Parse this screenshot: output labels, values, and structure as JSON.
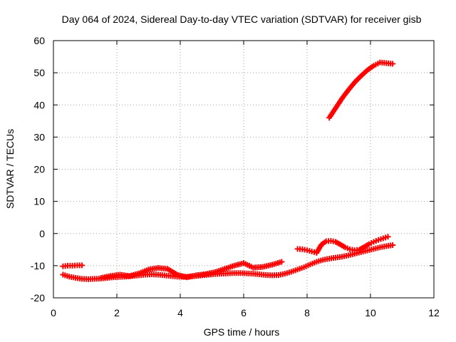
{
  "chart_data": {
    "type": "scatter",
    "title": "Day 064 of 2024, Sidereal Day-to-day VTEC variation (SDTVAR) for receiver gisb",
    "xlabel": "GPS time / hours",
    "ylabel": "SDTVAR / TECUs",
    "xlim": [
      0,
      12
    ],
    "ylim": [
      -20,
      60
    ],
    "xticks": [
      0,
      2,
      4,
      6,
      8,
      10,
      12
    ],
    "yticks": [
      -20,
      -10,
      0,
      10,
      20,
      30,
      40,
      50,
      60
    ],
    "grid": true,
    "marker": "plus",
    "color": "#ff0000",
    "series": [
      {
        "name": "arc-1",
        "x": [
          0.3,
          0.45,
          0.6,
          0.75,
          0.9
        ],
        "y": [
          -10.2,
          -10.0,
          -10.0,
          -9.9,
          -9.9
        ]
      },
      {
        "name": "arc-2",
        "x": [
          0.3,
          0.5,
          0.7,
          0.9,
          1.1,
          1.3,
          1.5,
          1.7,
          1.9,
          2.1,
          2.3,
          2.5,
          2.7,
          2.9,
          3.1,
          3.3,
          3.5,
          3.7,
          3.9,
          4.1,
          4.3,
          4.5,
          4.7,
          4.9,
          5.1,
          5.3,
          5.5,
          5.7,
          5.9,
          6.1,
          6.3,
          6.5,
          6.7,
          6.9,
          7.1,
          7.3,
          7.5,
          7.7,
          7.9,
          8.1,
          8.3,
          8.5,
          8.7,
          8.9,
          9.1,
          9.3,
          9.5,
          9.7,
          9.9,
          10.1,
          10.3,
          10.5,
          10.7
        ],
        "y": [
          -12.8,
          -13.4,
          -13.8,
          -14.1,
          -14.2,
          -14.1,
          -14.0,
          -13.8,
          -13.6,
          -13.5,
          -13.4,
          -13.2,
          -13.0,
          -12.8,
          -12.7,
          -12.8,
          -13.0,
          -13.2,
          -13.4,
          -13.5,
          -13.4,
          -13.2,
          -13.0,
          -12.8,
          -12.6,
          -12.5,
          -12.4,
          -12.3,
          -12.3,
          -12.4,
          -12.5,
          -12.7,
          -12.9,
          -13.0,
          -12.9,
          -12.5,
          -11.9,
          -11.2,
          -10.5,
          -9.6,
          -8.8,
          -8.2,
          -7.8,
          -7.5,
          -7.2,
          -6.8,
          -6.3,
          -5.8,
          -5.3,
          -4.8,
          -4.3,
          -3.9,
          -3.6
        ]
      },
      {
        "name": "arc-3",
        "x": [
          1.5,
          1.8,
          2.1,
          2.4,
          2.7,
          3.0,
          3.3,
          3.6,
          3.9,
          4.2,
          4.5,
          4.8,
          5.1,
          5.4,
          5.7,
          6.0,
          6.3,
          6.6,
          6.9,
          7.2
        ],
        "y": [
          -13.8,
          -13.2,
          -12.8,
          -13.2,
          -12.4,
          -11.2,
          -10.7,
          -11.0,
          -12.8,
          -13.6,
          -13.0,
          -12.6,
          -12.0,
          -11.0,
          -10.0,
          -9.2,
          -10.6,
          -10.4,
          -9.7,
          -8.8
        ]
      },
      {
        "name": "arc-4",
        "x": [
          7.7,
          7.85,
          8.0,
          8.15,
          8.3,
          8.45,
          8.6,
          8.75,
          8.9,
          9.05,
          9.2,
          9.35,
          9.5,
          9.65,
          9.8,
          9.95,
          10.1,
          10.25,
          10.4,
          10.55
        ],
        "y": [
          -4.8,
          -4.9,
          -5.2,
          -5.6,
          -6.0,
          -3.5,
          -2.4,
          -2.3,
          -2.6,
          -3.4,
          -4.3,
          -4.9,
          -5.2,
          -5.0,
          -4.2,
          -3.3,
          -2.6,
          -2.0,
          -1.5,
          -1.0
        ]
      },
      {
        "name": "arc-5",
        "x": [
          8.7,
          8.9,
          9.1,
          9.3,
          9.5,
          9.7,
          9.9,
          10.1,
          10.3,
          10.5,
          10.7
        ],
        "y": [
          36.0,
          39.0,
          42.0,
          44.6,
          47.0,
          49.0,
          50.8,
          52.2,
          53.2,
          53.0,
          52.8
        ]
      }
    ]
  }
}
